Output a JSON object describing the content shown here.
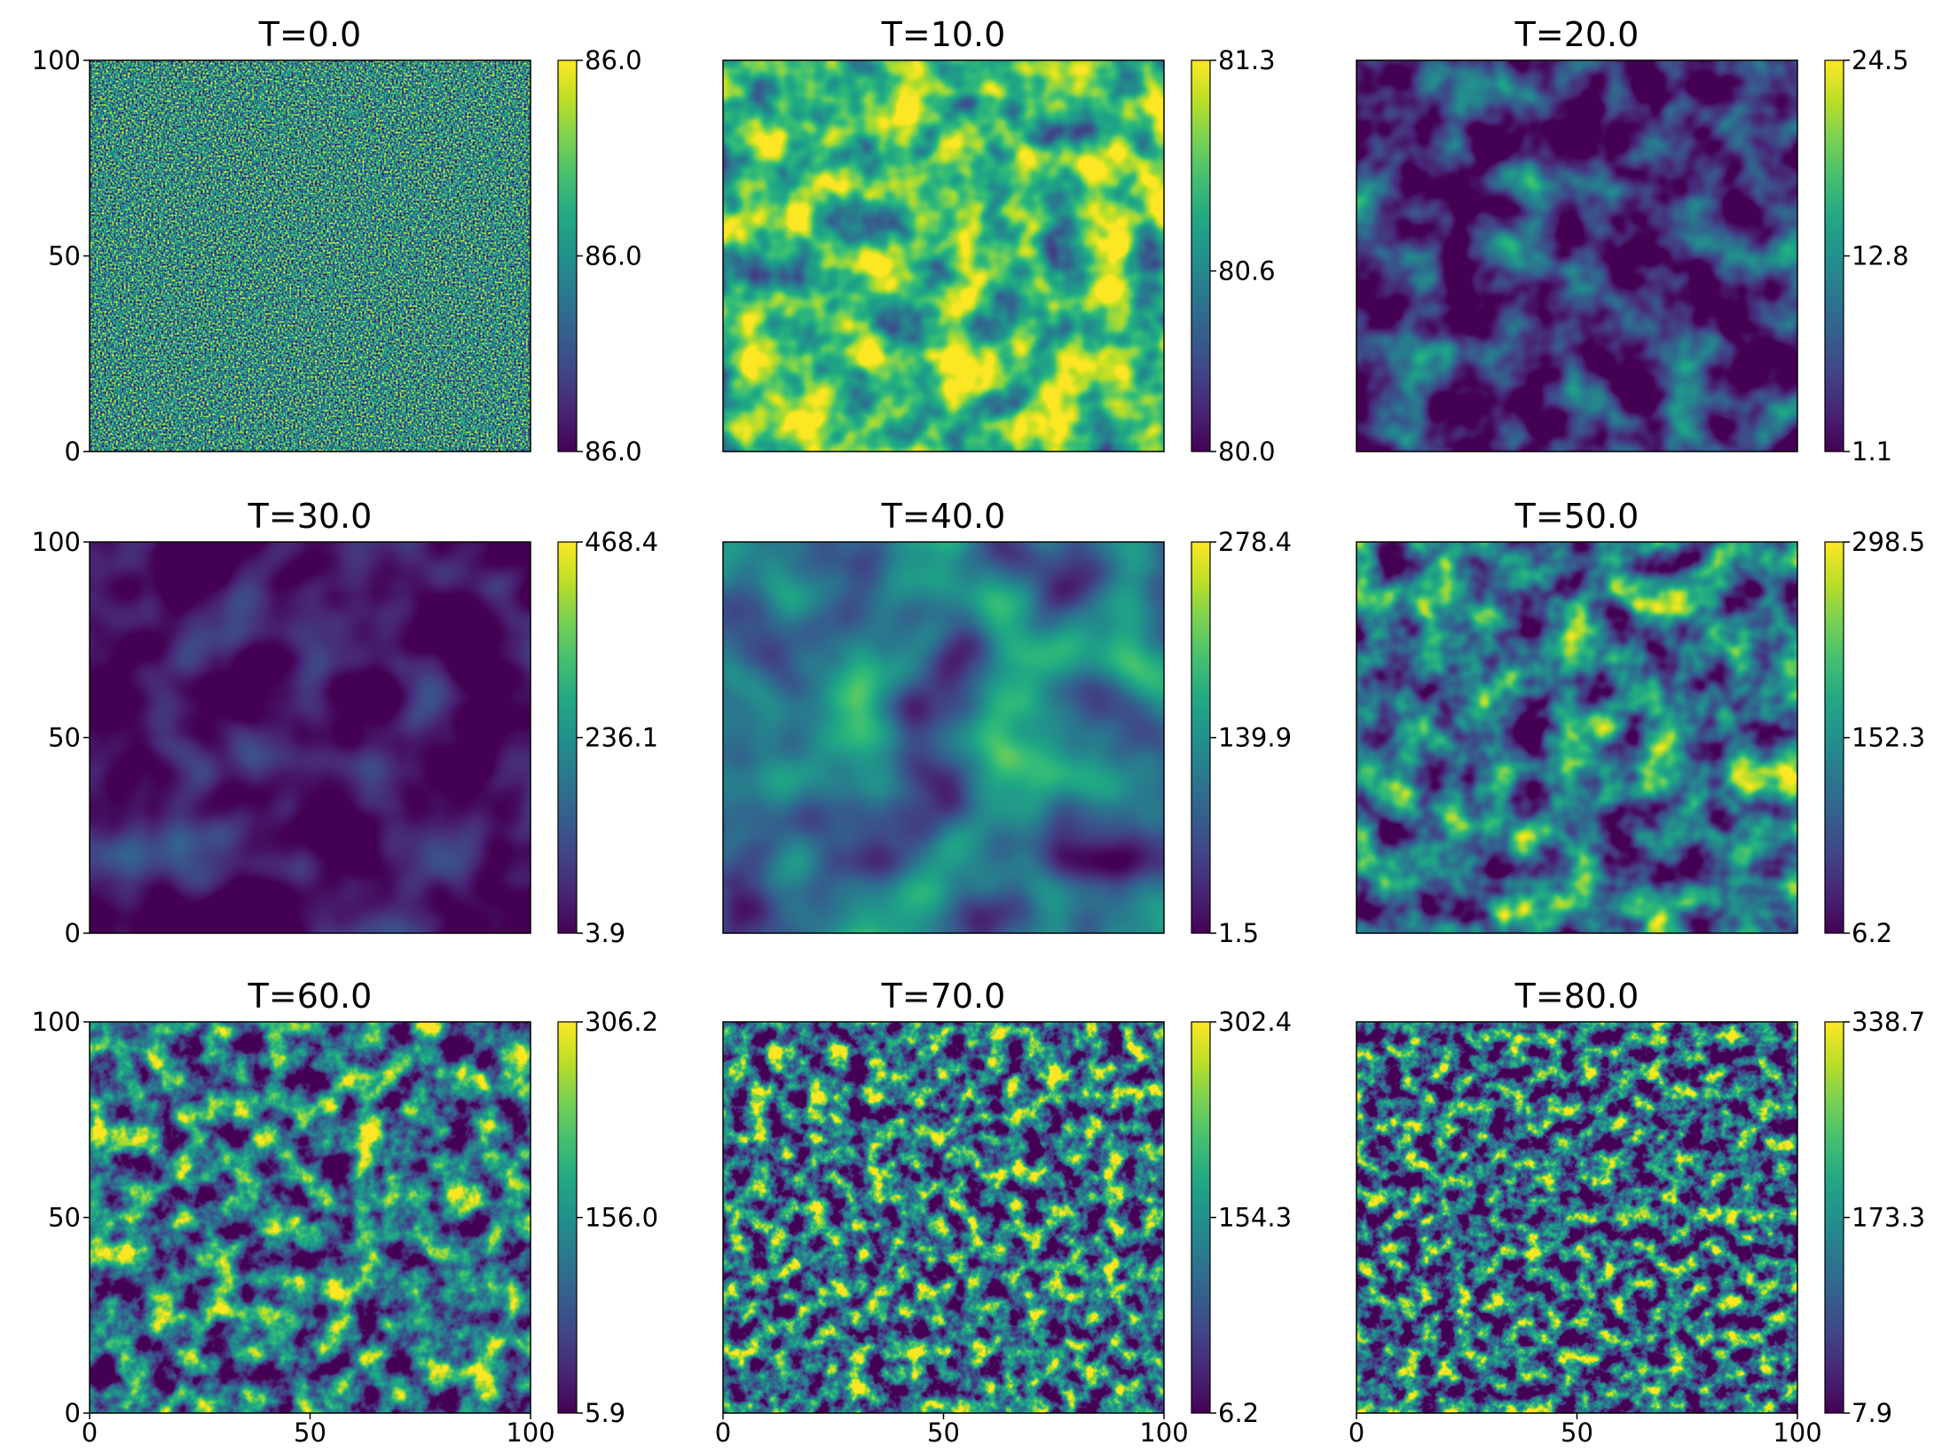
{
  "chart_data": [
    {
      "type": "heatmap",
      "title": "T=0.0",
      "xlim": [
        0,
        100
      ],
      "ylim": [
        0,
        100
      ],
      "yticks": [
        0,
        50,
        100
      ],
      "clim": [
        85.96,
        86.04
      ],
      "cticks": [
        {
          "value": 85.96,
          "label": "86.0"
        },
        {
          "value": 86.0,
          "label": "86.0"
        },
        {
          "value": 86.04,
          "label": "86.0"
        }
      ]
    },
    {
      "type": "heatmap",
      "title": "T=10.0",
      "xlim": [
        0,
        100
      ],
      "ylim": [
        0,
        100
      ],
      "clim": [
        80.0,
        81.3
      ],
      "cticks": [
        {
          "value": 80.0,
          "label": "80.0"
        },
        80.6,
        81.3
      ]
    },
    {
      "type": "heatmap",
      "title": "T=20.0",
      "xlim": [
        0,
        100
      ],
      "ylim": [
        0,
        100
      ],
      "clim": [
        1.1,
        24.5
      ],
      "cticks": [
        1.1,
        12.8,
        24.5
      ]
    },
    {
      "type": "heatmap",
      "title": "T=30.0",
      "xlim": [
        0,
        100
      ],
      "ylim": [
        0,
        100
      ],
      "yticks": [
        0,
        50,
        100
      ],
      "clim": [
        3.9,
        468.4
      ],
      "cticks": [
        3.9,
        236.1,
        468.4
      ]
    },
    {
      "type": "heatmap",
      "title": "T=40.0",
      "xlim": [
        0,
        100
      ],
      "ylim": [
        0,
        100
      ],
      "clim": [
        1.5,
        278.4
      ],
      "cticks": [
        1.5,
        139.9,
        278.4
      ]
    },
    {
      "type": "heatmap",
      "title": "T=50.0",
      "xlim": [
        0,
        100
      ],
      "ylim": [
        0,
        100
      ],
      "clim": [
        6.2,
        298.5
      ],
      "cticks": [
        6.2,
        152.3,
        298.5
      ]
    },
    {
      "type": "heatmap",
      "title": "T=60.0",
      "xlim": [
        0,
        100
      ],
      "ylim": [
        0,
        100
      ],
      "xticks": [
        0,
        50,
        100
      ],
      "yticks": [
        0,
        50,
        100
      ],
      "clim": [
        5.9,
        306.2
      ],
      "cticks": [
        5.9,
        {
          "value": 156.0,
          "label": "156.0"
        },
        306.2
      ]
    },
    {
      "type": "heatmap",
      "title": "T=70.0",
      "xlim": [
        0,
        100
      ],
      "ylim": [
        0,
        100
      ],
      "xticks": [
        0,
        50,
        100
      ],
      "clim": [
        6.2,
        302.4
      ],
      "cticks": [
        6.2,
        154.3,
        302.4
      ]
    },
    {
      "type": "heatmap",
      "title": "T=80.0",
      "xlim": [
        0,
        100
      ],
      "ylim": [
        0,
        100
      ],
      "xticks": [
        0,
        50,
        100
      ],
      "clim": [
        7.9,
        338.7
      ],
      "cticks": [
        7.9,
        173.3,
        338.7
      ]
    }
  ]
}
